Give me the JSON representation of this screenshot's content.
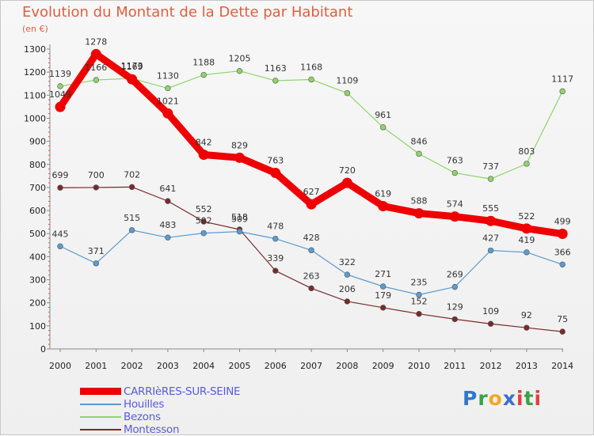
{
  "header": {
    "title": "Evolution du Montant de la Dette par Habitant",
    "unit": "(en €)"
  },
  "chart_data": {
    "type": "line",
    "title": "Evolution du Montant de la Dette par Habitant",
    "ylabel": "(en €)",
    "xlabel": "",
    "ylim": [
      0,
      1300
    ],
    "yticks": [
      0,
      100,
      200,
      300,
      400,
      500,
      600,
      700,
      800,
      900,
      1000,
      1100,
      1200,
      1300
    ],
    "grid": false,
    "categories": [
      "2000",
      "2001",
      "2002",
      "2003",
      "2004",
      "2005",
      "2006",
      "2007",
      "2008",
      "2009",
      "2010",
      "2011",
      "2012",
      "2013",
      "2014"
    ],
    "series": [
      {
        "name": "Montesson",
        "color": "#7a2a2a",
        "emphasis": false,
        "values": [
          699,
          700,
          702,
          641,
          552,
          518,
          339,
          263,
          206,
          179,
          152,
          129,
          109,
          92,
          75
        ]
      },
      {
        "name": "Houilles",
        "color": "#5b9bd0",
        "emphasis": false,
        "values": [
          445,
          371,
          515,
          483,
          502,
          509,
          478,
          428,
          322,
          271,
          235,
          269,
          427,
          419,
          366
        ]
      },
      {
        "name": "Bezons",
        "color": "#8fd46a",
        "emphasis": false,
        "values": [
          1139,
          1166,
          1173,
          1130,
          1188,
          1205,
          1163,
          1168,
          1109,
          961,
          846,
          763,
          737,
          803,
          1117
        ]
      },
      {
        "name": "CARRIèRES-SUR-SEINE",
        "color": "#ee0000",
        "emphasis": true,
        "values": [
          1049,
          1278,
          1169,
          1021,
          842,
          829,
          763,
          627,
          720,
          619,
          588,
          574,
          555,
          522,
          499
        ]
      }
    ],
    "legend_position": "bottom-left"
  },
  "legend": {
    "items": [
      {
        "label": "CARRIèRES-SUR-SEINE",
        "color": "#ee0000",
        "thick": true
      },
      {
        "label": "Houilles",
        "color": "#5b9bd0",
        "thick": false
      },
      {
        "label": "Bezons",
        "color": "#8fd46a",
        "thick": false
      },
      {
        "label": "Montesson",
        "color": "#7a2a2a",
        "thick": false
      }
    ]
  },
  "logo": {
    "letters": [
      "P",
      "r",
      "o",
      "x",
      "i",
      "t",
      "i"
    ],
    "colors": [
      "#2f79c9",
      "#3aa14a",
      "#f5a623",
      "#3a6fd0",
      "#e04040",
      "#3aa14a",
      "#e04040"
    ]
  }
}
